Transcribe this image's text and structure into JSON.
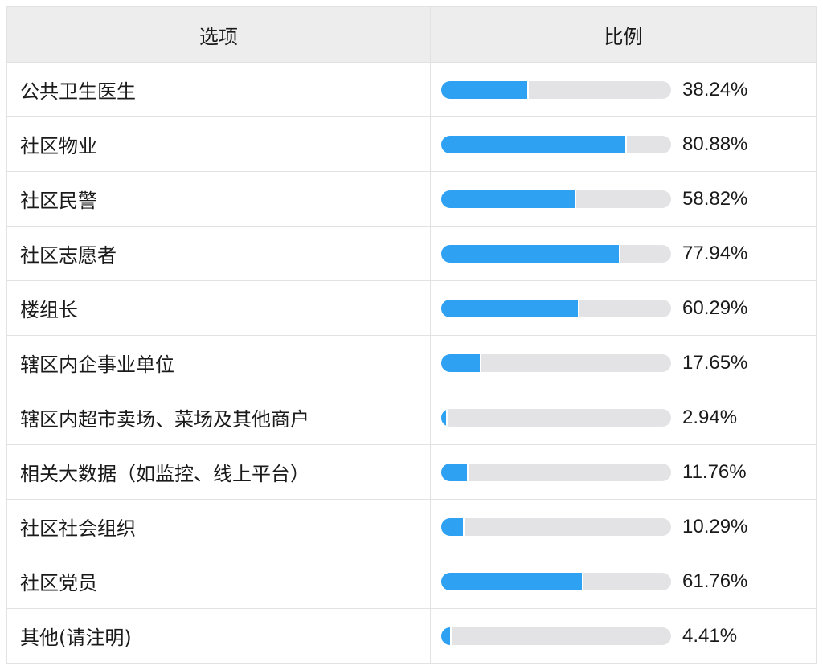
{
  "header": {
    "option_label": "选项",
    "ratio_label": "比例"
  },
  "colors": {
    "bar_fill": "#2ea1f3",
    "bar_track": "#e3e3e5",
    "header_bg": "#ededed"
  },
  "chart_data": {
    "type": "table",
    "columns": [
      "选项",
      "比例"
    ],
    "categories": [
      "公共卫生医生",
      "社区物业",
      "社区民警",
      "社区志愿者",
      "楼组长",
      "辖区内企事业单位",
      "辖区内超市卖场、菜场及其他商户",
      "相关大数据（如监控、线上平台）",
      "社区社会组织",
      "社区党员",
      "其他(请注明)"
    ],
    "values": [
      38.24,
      80.88,
      58.82,
      77.94,
      60.29,
      17.65,
      2.94,
      11.76,
      10.29,
      61.76,
      4.41
    ],
    "value_labels": [
      "38.24%",
      "80.88%",
      "58.82%",
      "77.94%",
      "60.29%",
      "17.65%",
      "2.94%",
      "11.76%",
      "10.29%",
      "61.76%",
      "4.41%"
    ],
    "ylim": [
      0,
      100
    ]
  }
}
